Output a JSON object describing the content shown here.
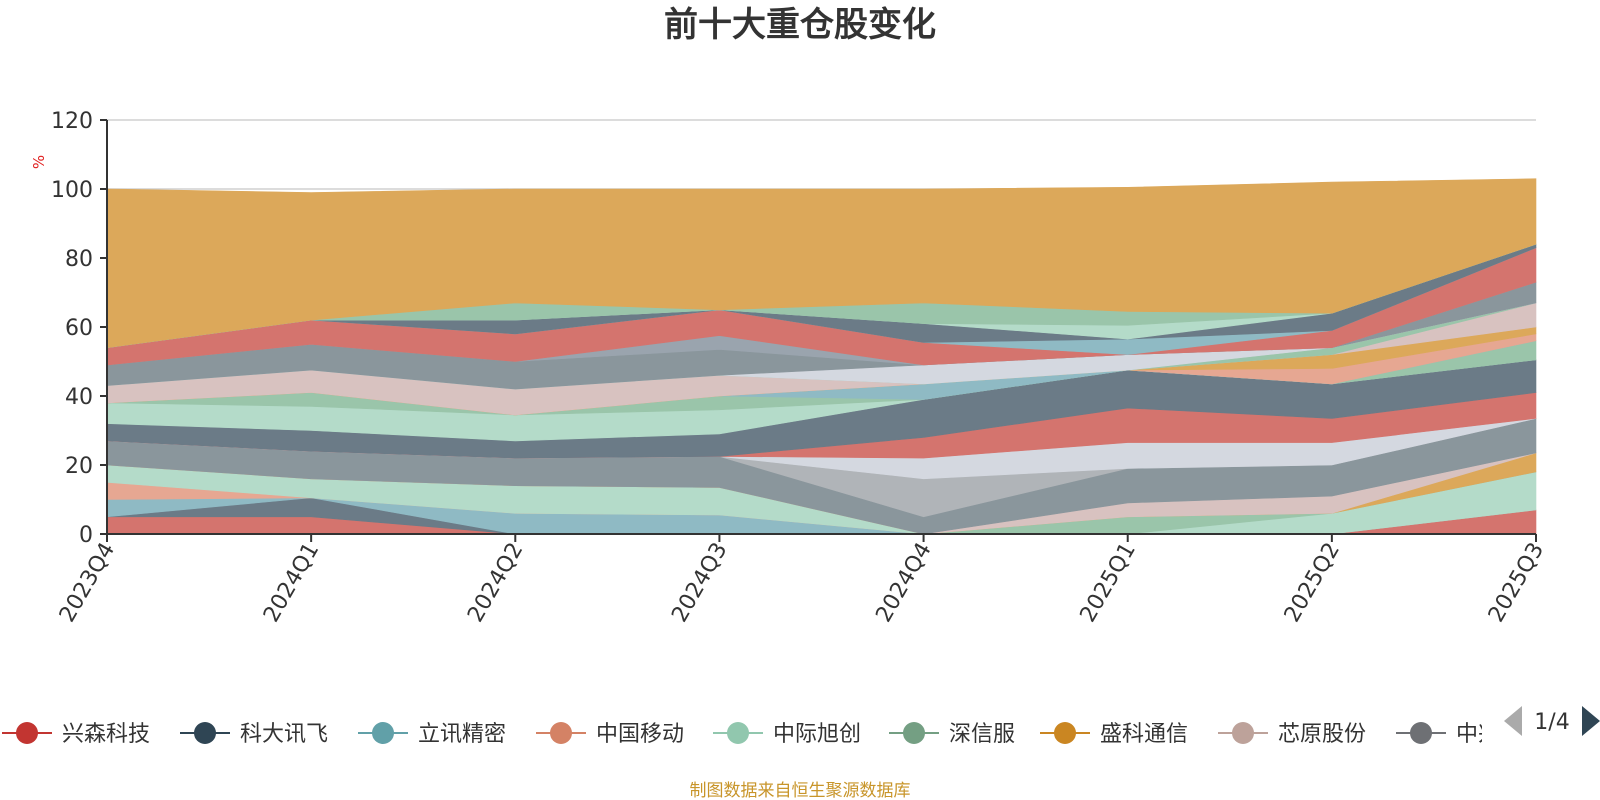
{
  "chart_data": {
    "type": "area",
    "title": "前十大重仓股变化",
    "ylabel": "%",
    "ylim": [
      0,
      120
    ],
    "yticks": [
      0,
      20,
      40,
      60,
      80,
      100,
      120
    ],
    "grid": true,
    "legend_position": "bottom",
    "categories": [
      "2023Q4",
      "2024Q1",
      "2024Q2",
      "2024Q3",
      "2024Q4",
      "2025Q1",
      "2025Q2",
      "2025Q3"
    ],
    "layers": [
      {
        "color": "#d4746e",
        "values": [
          5,
          5,
          0,
          0,
          0,
          0,
          0,
          7
        ]
      },
      {
        "color": "#6b7b87",
        "values": [
          0,
          5.5,
          0,
          0,
          0,
          0,
          0,
          0
        ]
      },
      {
        "color": "#8fbac4",
        "values": [
          5,
          0,
          6,
          5.5,
          0,
          0,
          0,
          0
        ]
      },
      {
        "color": "#e6a792",
        "values": [
          5,
          0,
          0,
          0,
          0,
          0,
          0,
          0
        ]
      },
      {
        "color": "#b4dbc9",
        "values": [
          5,
          5.5,
          8,
          8,
          0,
          0,
          6,
          11
        ]
      },
      {
        "color": "#9ac5aa",
        "values": [
          0,
          0,
          0,
          0,
          0,
          5,
          0,
          0
        ]
      },
      {
        "color": "#dca85a",
        "values": [
          0,
          0,
          0,
          0,
          0,
          0,
          0,
          5.5
        ]
      },
      {
        "color": "#d8c2c0",
        "values": [
          0,
          0,
          0,
          0,
          0,
          4,
          5,
          0
        ]
      },
      {
        "color": "#8a969c",
        "values": [
          7,
          8,
          8,
          9,
          5,
          10,
          9,
          10
        ]
      },
      {
        "color": "#b0b4b8",
        "values": [
          0,
          0,
          0,
          0,
          11,
          0,
          0,
          0
        ]
      },
      {
        "color": "#d4d8e0",
        "values": [
          0,
          0,
          0,
          0,
          6,
          7.5,
          6.5,
          0
        ]
      },
      {
        "color": "#d4746e",
        "values": [
          0,
          0,
          0,
          0,
          6,
          10,
          7,
          7.5
        ]
      },
      {
        "color": "#6b7b87",
        "values": [
          5,
          6,
          5,
          6.5,
          11,
          11,
          10,
          9.5
        ]
      },
      {
        "color": "#b4dbc9",
        "values": [
          6,
          7,
          7.5,
          7,
          0,
          0,
          0,
          0
        ]
      },
      {
        "color": "#9ac5aa",
        "values": [
          0,
          4,
          0,
          4,
          0,
          0,
          0,
          5.5
        ]
      },
      {
        "color": "#8fbac4",
        "values": [
          0,
          0,
          0,
          0,
          4.5,
          0,
          0,
          0
        ]
      },
      {
        "color": "#e6a792",
        "values": [
          0,
          0,
          0,
          0,
          0,
          0,
          4.5,
          2
        ]
      },
      {
        "color": "#dca85a",
        "values": [
          0,
          0,
          0,
          0,
          0,
          0,
          4,
          2
        ]
      },
      {
        "color": "#d8c2c0",
        "values": [
          5,
          6.5,
          7.5,
          6,
          0,
          0,
          0,
          7
        ]
      },
      {
        "color": "#9ac5aa",
        "values": [
          0,
          0,
          0,
          0,
          0,
          0,
          2,
          0
        ]
      },
      {
        "color": "#d4d8e0",
        "values": [
          0,
          0,
          0,
          0,
          5.5,
          4.5,
          0,
          0
        ]
      },
      {
        "color": "#8a969c",
        "values": [
          6,
          7.5,
          8,
          7.5,
          0,
          0,
          0,
          6
        ]
      },
      {
        "color": "#9aa4ae",
        "values": [
          0,
          0,
          0,
          4,
          0,
          0,
          0,
          0
        ]
      },
      {
        "color": "#d4746e",
        "values": [
          5,
          7,
          8,
          7.5,
          6.5,
          0,
          5,
          10
        ]
      },
      {
        "color": "#8fbac4",
        "values": [
          0,
          0,
          0,
          0,
          0,
          4.5,
          0,
          0
        ]
      },
      {
        "color": "#6b7b87",
        "values": [
          0,
          0,
          4,
          0,
          5.5,
          0,
          5,
          1
        ]
      },
      {
        "color": "#b4dbc9",
        "values": [
          0,
          0,
          0,
          0,
          0,
          4,
          0,
          0
        ]
      },
      {
        "color": "#9ac5aa",
        "values": [
          0,
          0,
          5,
          0,
          6,
          4,
          0,
          0
        ]
      },
      {
        "color": "#dca85a",
        "values": [
          46,
          37,
          33,
          35,
          33,
          36,
          38,
          19
        ]
      }
    ],
    "legend": [
      {
        "name": "兴森科技",
        "color": "#c23531"
      },
      {
        "name": "科大讯飞",
        "color": "#2f4554"
      },
      {
        "name": "立讯精密",
        "color": "#61a0a8"
      },
      {
        "name": "中国移动",
        "color": "#d48265"
      },
      {
        "name": "中际旭创",
        "color": "#91c7ae"
      },
      {
        "name": "深信服",
        "color": "#749f83"
      },
      {
        "name": "盛科通信",
        "color": "#ca8622"
      },
      {
        "name": "芯原股份",
        "color": "#bda29a"
      },
      {
        "name": "中兴",
        "color": "#6e7074"
      }
    ],
    "legend_page": "1/4",
    "source": "制图数据来自恒生聚源数据库"
  }
}
